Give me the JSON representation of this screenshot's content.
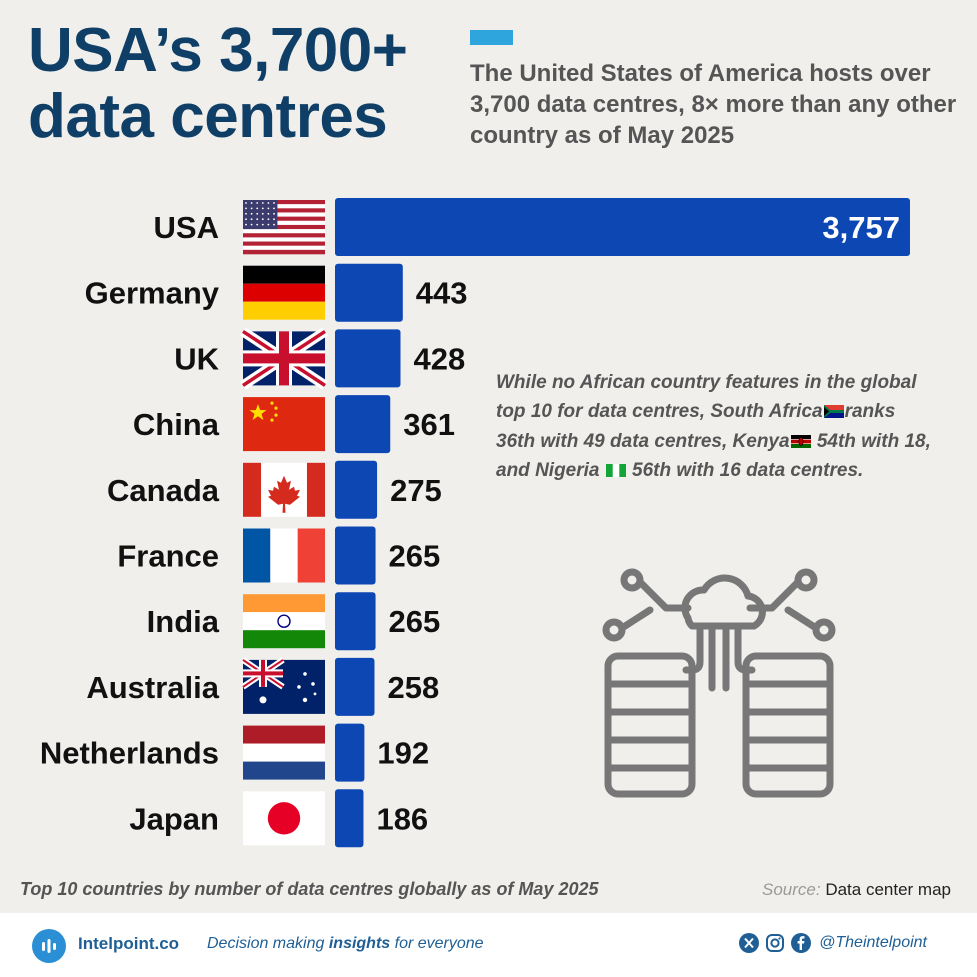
{
  "header": {
    "title_line1": "USA’s 3,700+",
    "title_line2": "data centres",
    "subtitle": "The United States of America hosts over 3,700 data centres, 8× more than any other country as of May 2025"
  },
  "chart_data": {
    "type": "bar",
    "orientation": "horizontal",
    "categories": [
      "USA",
      "Germany",
      "UK",
      "China",
      "Canada",
      "France",
      "India",
      "Australia",
      "Netherlands",
      "Japan"
    ],
    "values": [
      3757,
      443,
      428,
      361,
      275,
      265,
      265,
      258,
      192,
      186
    ],
    "value_labels": [
      "3,757",
      "443",
      "428",
      "361",
      "275",
      "265",
      "265",
      "258",
      "192",
      "186"
    ],
    "flags": [
      "flag-usa-icon",
      "flag-germany-icon",
      "flag-uk-icon",
      "flag-china-icon",
      "flag-canada-icon",
      "flag-france-icon",
      "flag-india-icon",
      "flag-australia-icon",
      "flag-netherlands-icon",
      "flag-japan-icon"
    ],
    "bar_color": "#0d47b4",
    "title": "USA’s 3,700+ data centres",
    "xlabel": "",
    "ylabel": "",
    "xlim": [
      0,
      3757
    ],
    "grid": false,
    "legend": "none"
  },
  "annotation": {
    "line1": "While no African country features in the global top 10 for data centres,",
    "sa_text": "South Africa",
    "sa_rank": "ranks 36th with 49 data centres,",
    "kenya_text": "Kenya",
    "kenya_rank": "54th with 18, and",
    "nigeria_text": "Nigeria",
    "nigeria_rank": "56th with 16 data centres."
  },
  "caption": "Top 10 countries by number of data centres globally as of May 2025",
  "source": {
    "label": "Source:",
    "value": "Data center map"
  },
  "footer": {
    "brand": "Intelpoint.co",
    "tagline_pre": "Decision making",
    "tagline_bold": "insights",
    "tagline_post": "for everyone",
    "handle": "@Theintelpoint",
    "icons": [
      "x-icon",
      "instagram-icon",
      "facebook-icon"
    ]
  },
  "colors": {
    "title": "#0f3f66",
    "accent": "#2ea6dd",
    "bar": "#0d47b4",
    "background": "#f0efec"
  }
}
